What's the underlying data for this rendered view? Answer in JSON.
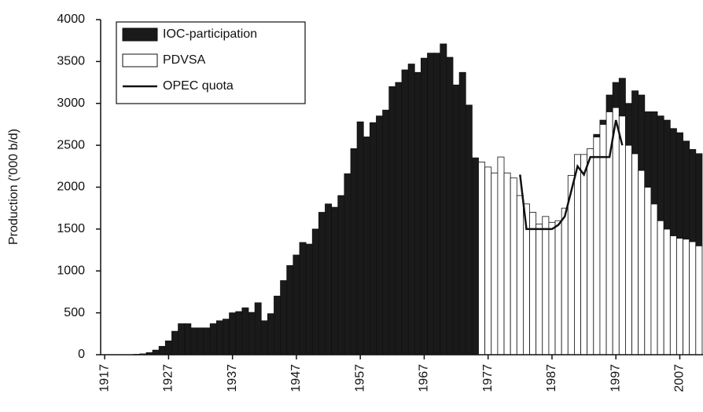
{
  "chart_data": {
    "type": "bar",
    "stacked": true,
    "y_label": "Production ('000 b/d)",
    "x": [
      1917,
      1918,
      1919,
      1920,
      1921,
      1922,
      1923,
      1924,
      1925,
      1926,
      1927,
      1928,
      1929,
      1930,
      1931,
      1932,
      1933,
      1934,
      1935,
      1936,
      1937,
      1938,
      1939,
      1940,
      1941,
      1942,
      1943,
      1944,
      1945,
      1946,
      1947,
      1948,
      1949,
      1950,
      1951,
      1952,
      1953,
      1954,
      1955,
      1956,
      1957,
      1958,
      1959,
      1960,
      1961,
      1962,
      1963,
      1964,
      1965,
      1966,
      1967,
      1968,
      1969,
      1970,
      1971,
      1972,
      1973,
      1974,
      1975,
      1976,
      1977,
      1978,
      1979,
      1980,
      1981,
      1982,
      1983,
      1984,
      1985,
      1986,
      1987,
      1988,
      1989,
      1990,
      1991,
      1992,
      1993,
      1994,
      1995,
      1996,
      1997,
      1998,
      1999,
      2000,
      2001,
      2002,
      2003,
      2004,
      2005,
      2006,
      2007,
      2008,
      2009,
      2010
    ],
    "series": [
      {
        "name": "IOC-participation",
        "color": "#1a1a1a",
        "values": [
          0,
          0,
          0,
          0,
          0,
          5,
          10,
          25,
          55,
          100,
          165,
          280,
          370,
          370,
          320,
          320,
          320,
          370,
          405,
          425,
          500,
          515,
          560,
          505,
          620,
          405,
          490,
          700,
          885,
          1065,
          1190,
          1340,
          1320,
          1500,
          1700,
          1800,
          1760,
          1900,
          2160,
          2460,
          2780,
          2600,
          2770,
          2850,
          2920,
          3200,
          3250,
          3400,
          3470,
          3370,
          3540,
          3600,
          3600,
          3710,
          3550,
          3220,
          3370,
          2980,
          2350,
          0,
          0,
          0,
          0,
          0,
          0,
          0,
          0,
          0,
          0,
          0,
          0,
          0,
          0,
          0,
          0,
          0,
          0,
          30,
          50,
          200,
          300,
          450,
          500,
          750,
          900,
          900,
          1100,
          1250,
          1300,
          1280,
          1260,
          1170,
          1100,
          1100
        ]
      },
      {
        "name": "PDVSA",
        "color": "#ffffff",
        "values": [
          0,
          0,
          0,
          0,
          0,
          0,
          0,
          0,
          0,
          0,
          0,
          0,
          0,
          0,
          0,
          0,
          0,
          0,
          0,
          0,
          0,
          0,
          0,
          0,
          0,
          0,
          0,
          0,
          0,
          0,
          0,
          0,
          0,
          0,
          0,
          0,
          0,
          0,
          0,
          0,
          0,
          0,
          0,
          0,
          0,
          0,
          0,
          0,
          0,
          0,
          0,
          0,
          0,
          0,
          0,
          0,
          0,
          0,
          0,
          2300,
          2240,
          2170,
          2360,
          2170,
          2110,
          1900,
          1800,
          1700,
          1560,
          1650,
          1580,
          1600,
          1750,
          2140,
          2390,
          2390,
          2460,
          2600,
          2750,
          2900,
          2950,
          2850,
          2500,
          2400,
          2200,
          2000,
          1800,
          1600,
          1500,
          1420,
          1390,
          1380,
          1350,
          1300
        ]
      },
      {
        "name": "OPEC quota",
        "type": "line",
        "color": "#111111",
        "values": [
          null,
          null,
          null,
          null,
          null,
          null,
          null,
          null,
          null,
          null,
          null,
          null,
          null,
          null,
          null,
          null,
          null,
          null,
          null,
          null,
          null,
          null,
          null,
          null,
          null,
          null,
          null,
          null,
          null,
          null,
          null,
          null,
          null,
          null,
          null,
          null,
          null,
          null,
          null,
          null,
          null,
          null,
          null,
          null,
          null,
          null,
          null,
          null,
          null,
          null,
          null,
          null,
          null,
          null,
          null,
          null,
          null,
          null,
          null,
          null,
          null,
          null,
          null,
          null,
          null,
          2150,
          1500,
          1500,
          1500,
          1500,
          1500,
          1550,
          1650,
          1950,
          2250,
          2150,
          2360,
          2360,
          2360,
          2360,
          2800,
          2500,
          null,
          null,
          null,
          null,
          null,
          null,
          null,
          null,
          null,
          null,
          null,
          null
        ]
      }
    ],
    "xlim": [
      1916,
      2011
    ],
    "xticks": [
      1917,
      1927,
      1937,
      1947,
      1957,
      1967,
      1977,
      1987,
      1997,
      2007
    ],
    "ylim": [
      0,
      4000
    ],
    "yticks": [
      0,
      500,
      1000,
      1500,
      2000,
      2500,
      3000,
      3500,
      4000
    ],
    "legend": "upper left"
  }
}
